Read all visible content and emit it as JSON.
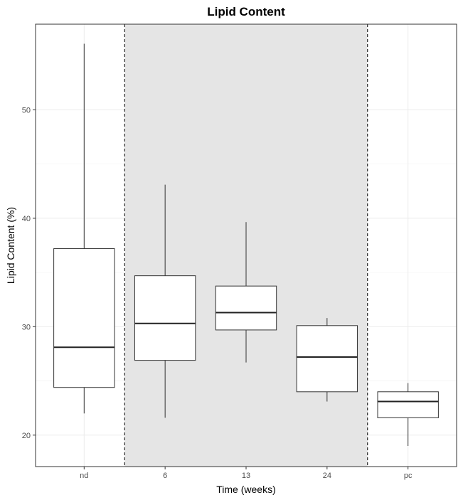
{
  "chart_data": {
    "type": "box",
    "title": "Lipid Content",
    "xlabel": "Time (weeks)",
    "ylabel": "Lipid Content (%)",
    "categories": [
      "nd",
      "6",
      "13",
      "24",
      "pc"
    ],
    "ylim": [
      17.1,
      57.9
    ],
    "yticks": [
      20,
      30,
      40,
      50
    ],
    "grid": true,
    "shaded_region": {
      "from_category": "6",
      "to_category": "24",
      "color": "#e5e5e5"
    },
    "boxes": [
      {
        "category": "nd",
        "min": 22.0,
        "q1": 24.4,
        "median": 28.1,
        "q3": 37.2,
        "max": 56.1
      },
      {
        "category": "6",
        "min": 21.6,
        "q1": 26.9,
        "median": 30.3,
        "q3": 34.7,
        "max": 43.1
      },
      {
        "category": "13",
        "min": 26.7,
        "q1": 29.7,
        "median": 31.3,
        "q3": 33.75,
        "max": 39.65
      },
      {
        "category": "24",
        "min": 23.1,
        "q1": 24.0,
        "median": 27.2,
        "q3": 30.1,
        "max": 30.8
      },
      {
        "category": "pc",
        "min": 19.0,
        "q1": 21.6,
        "median": 23.1,
        "q3": 24.0,
        "max": 24.8
      }
    ]
  }
}
